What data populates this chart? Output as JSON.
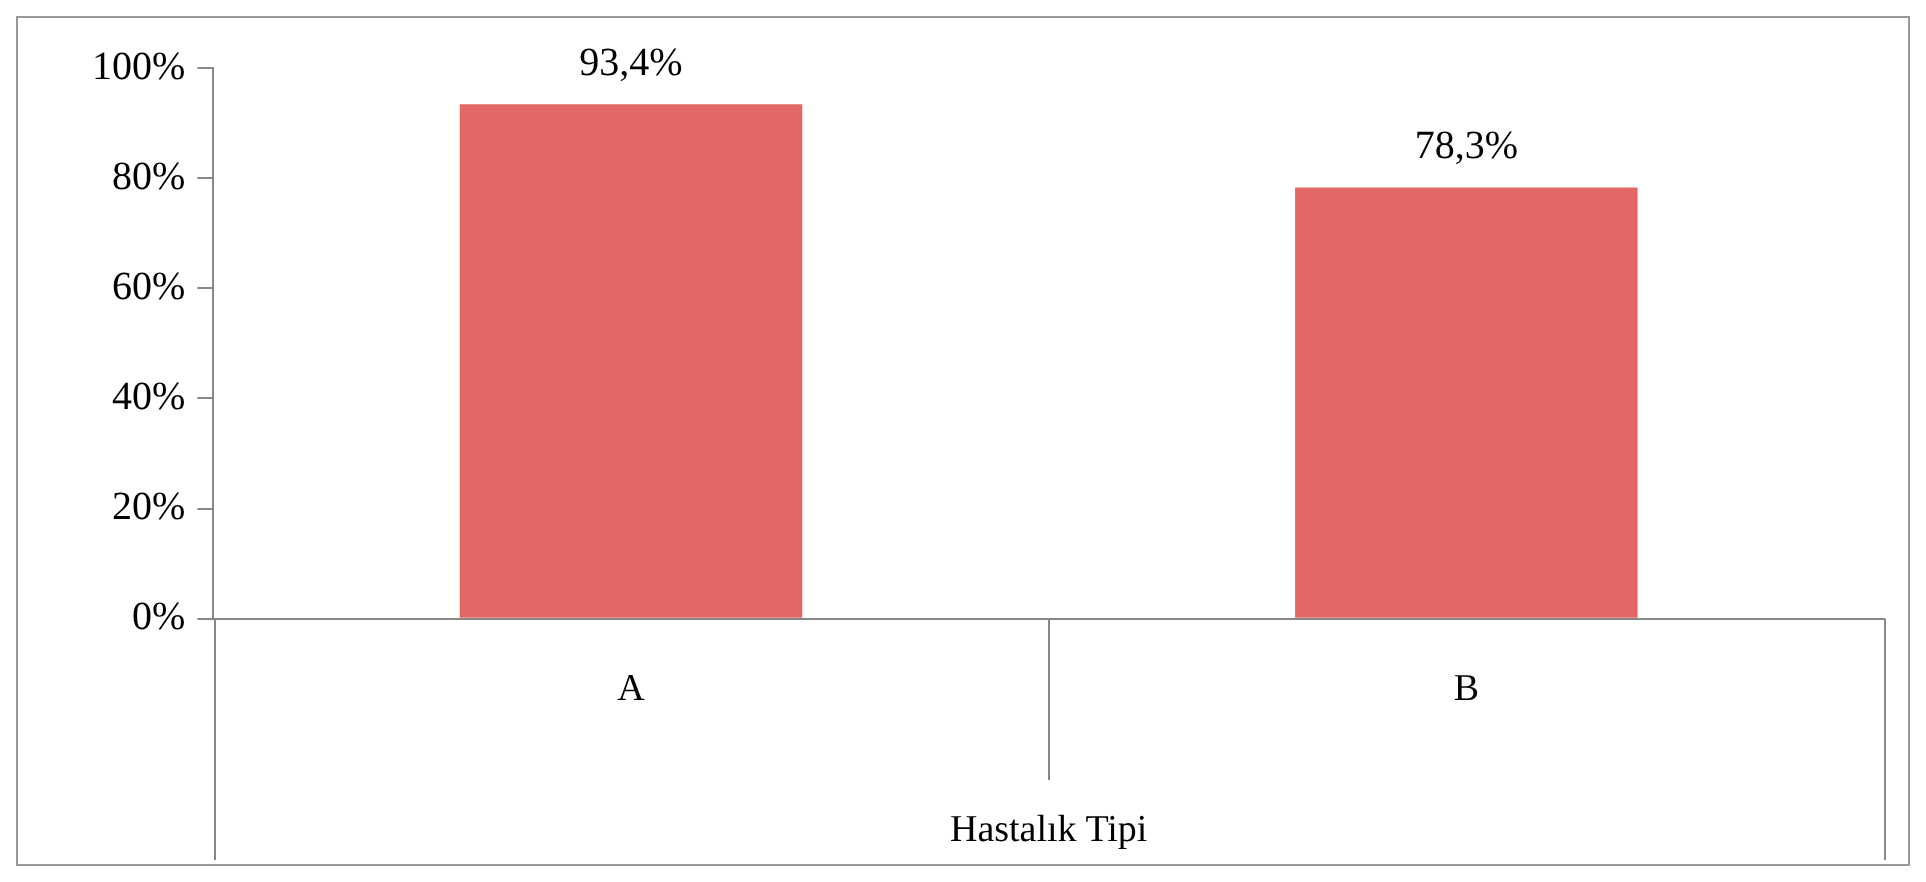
{
  "chart_data": {
    "type": "bar",
    "xlabel": "Hastalık Tipi",
    "categories": [
      "A",
      "B"
    ],
    "values": [
      93.4,
      78.3
    ],
    "value_labels": [
      "93,4%",
      "78,3%"
    ],
    "color": "#e36764",
    "ylim": [
      0,
      100
    ],
    "yticks": [
      {
        "value": 0,
        "label": "0%"
      },
      {
        "value": 20,
        "label": "20%"
      },
      {
        "value": 40,
        "label": "40%"
      },
      {
        "value": 60,
        "label": "60%"
      },
      {
        "value": 80,
        "label": "80%"
      },
      {
        "value": 100,
        "label": "100%"
      }
    ],
    "grid": false,
    "legend": false
  }
}
